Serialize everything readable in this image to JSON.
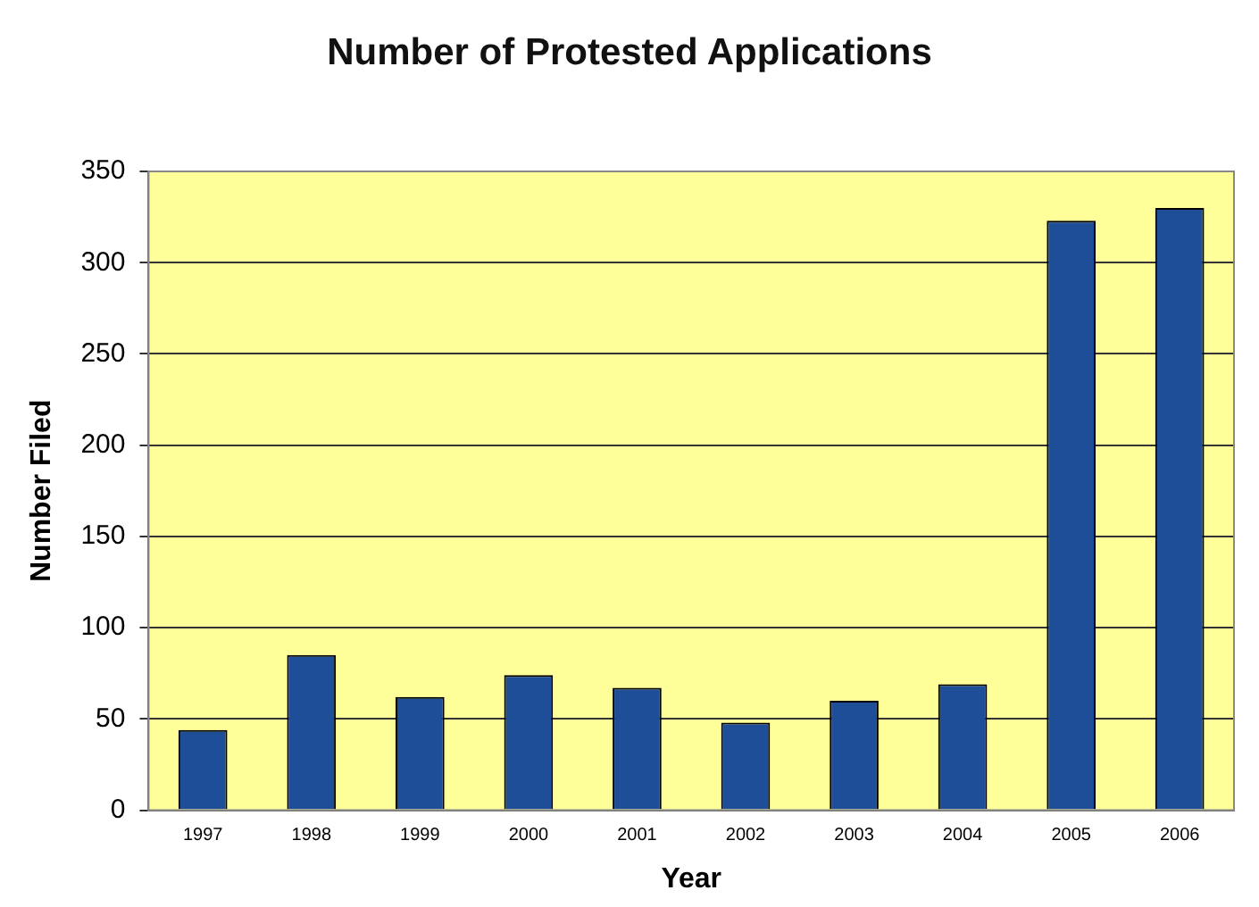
{
  "chart_data": {
    "type": "bar",
    "title": "Number of Protested Applications",
    "xlabel": "Year",
    "ylabel": "Number Filed",
    "categories": [
      "1997",
      "1998",
      "1999",
      "2000",
      "2001",
      "2002",
      "2003",
      "2004",
      "2005",
      "2006"
    ],
    "values": [
      44,
      85,
      62,
      74,
      67,
      48,
      60,
      69,
      323,
      330
    ],
    "color": "#1f4e99",
    "ylim": [
      0,
      350
    ],
    "yticks": [
      0,
      50,
      100,
      150,
      200,
      250,
      300,
      350
    ],
    "grid": "y"
  }
}
